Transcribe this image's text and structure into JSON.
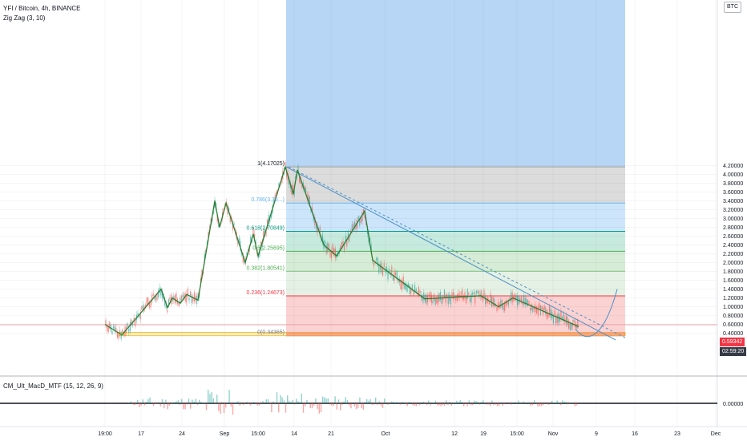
{
  "header": {
    "symbol": "YFI / Bitcoin, 4h, BINANCE",
    "indicator": "Zig Zag (3, 10)",
    "currency_tag": "BTC"
  },
  "sub_pane": {
    "label": "CM_Ult_MacD_MTF (15, 12, 26, 9)",
    "value_label": "0.00000"
  },
  "badges": {
    "last_price": "0.59342",
    "countdown": "02:59:20",
    "last_price_color": "#f23645",
    "countdown_color": "#363a45"
  },
  "colors": {
    "zigzag": "#2e7d32",
    "trendline": "#4a90c8",
    "candle_up": "#26a69a",
    "candle_down": "#ef5350"
  },
  "chart_data": {
    "type": "candlestick",
    "title": "YFI / Bitcoin, 4h, BINANCE",
    "y_axis": {
      "side": "right",
      "range": [
        0.33,
        4.25
      ],
      "ticks": [
        "0.40000",
        "0.60000",
        "0.80000",
        "1.00000",
        "1.20000",
        "1.40000",
        "1.60000",
        "1.80000",
        "2.00000",
        "2.20000",
        "2.40000",
        "2.60000",
        "2.80000",
        "3.00000",
        "3.20000",
        "3.40000",
        "3.60000",
        "3.80000",
        "4.00000",
        "4.20000"
      ]
    },
    "x_axis": {
      "ticks": [
        "19:00",
        "17",
        "24",
        "Sep",
        "15:00",
        "14",
        "21",
        "Oct",
        "12",
        "19",
        "15:00",
        "Nov",
        "9",
        "16",
        "23",
        "Dec"
      ]
    },
    "zigzag": [
      {
        "x": "19:00",
        "y": 0.6
      },
      {
        "x": "17",
        "y": 0.36
      },
      {
        "x": "17",
        "y": 1.4
      },
      {
        "x": "24",
        "y": 0.98
      },
      {
        "x": "24",
        "y": 1.2
      },
      {
        "x": "24",
        "y": 1.08
      },
      {
        "x": "24",
        "y": 1.28
      },
      {
        "x": "24",
        "y": 1.15
      },
      {
        "x": "Sep",
        "y": 3.4
      },
      {
        "x": "Sep",
        "y": 2.8
      },
      {
        "x": "Sep",
        "y": 3.35
      },
      {
        "x": "Sep",
        "y": 2.0
      },
      {
        "x": "15:00",
        "y": 2.65
      },
      {
        "x": "15:00",
        "y": 2.15
      },
      {
        "x": "14",
        "y": 4.17
      },
      {
        "x": "14",
        "y": 3.55
      },
      {
        "x": "14",
        "y": 4.1
      },
      {
        "x": "21",
        "y": 2.4
      },
      {
        "x": "21",
        "y": 2.15
      },
      {
        "x": "Oct",
        "y": 3.17
      },
      {
        "x": "Oct",
        "y": 2.05
      },
      {
        "x": "12",
        "y": 1.18
      },
      {
        "x": "19",
        "y": 1.25
      },
      {
        "x": "15:00",
        "y": 1.0
      },
      {
        "x": "15:00",
        "y": 1.2
      },
      {
        "x": "Nov",
        "y": 0.55
      }
    ],
    "fibonacci": {
      "levels": [
        {
          "ratio": "1",
          "value": "4.17025",
          "label": "1(4.17025)",
          "fill": "#b7d6f5",
          "line": "#9e9e9e",
          "label_color": "#131722"
        },
        {
          "ratio": "0.786",
          "value": "3.35",
          "label": "0.786(3.35...)",
          "fill": "#dcdcdc",
          "line": "#64b5f6",
          "label_color": "#64b5f6"
        },
        {
          "ratio": "0.618",
          "value": "2.70849",
          "label": "0.618(2.70849)",
          "fill": "#cde5fa",
          "line": "#089981",
          "label_color": "#089981"
        },
        {
          "ratio": "0.5",
          "value": "2.25695",
          "label": "0.5(2.25695)",
          "fill": "#c7eadf",
          "line": "#4caf50",
          "label_color": "#4caf50"
        },
        {
          "ratio": "0.382",
          "value": "1.80541",
          "label": "0.382(1.80541)",
          "fill": "#d6ecd6",
          "line": "#81c784",
          "label_color": "#4caf50"
        },
        {
          "ratio": "0.236",
          "value": "1.24673",
          "label": "0.236(1.24673)",
          "fill": "#e4f1e4",
          "line": "#f23645",
          "label_color": "#f23645"
        },
        {
          "ratio": "0",
          "value": "0.34365",
          "label": "0(0.34365)",
          "fill": "#fbd2d2",
          "line": "#787b86",
          "label_color": "#787b86"
        }
      ]
    },
    "series": [
      {
        "values": [
          0.6,
          0.36,
          1.4,
          0.98,
          1.28,
          3.4,
          2.0,
          2.65,
          4.17,
          2.15,
          3.17,
          2.05,
          1.18,
          1.25,
          1.0,
          0.55
        ]
      }
    ],
    "grid": true,
    "legend": "top-left"
  }
}
